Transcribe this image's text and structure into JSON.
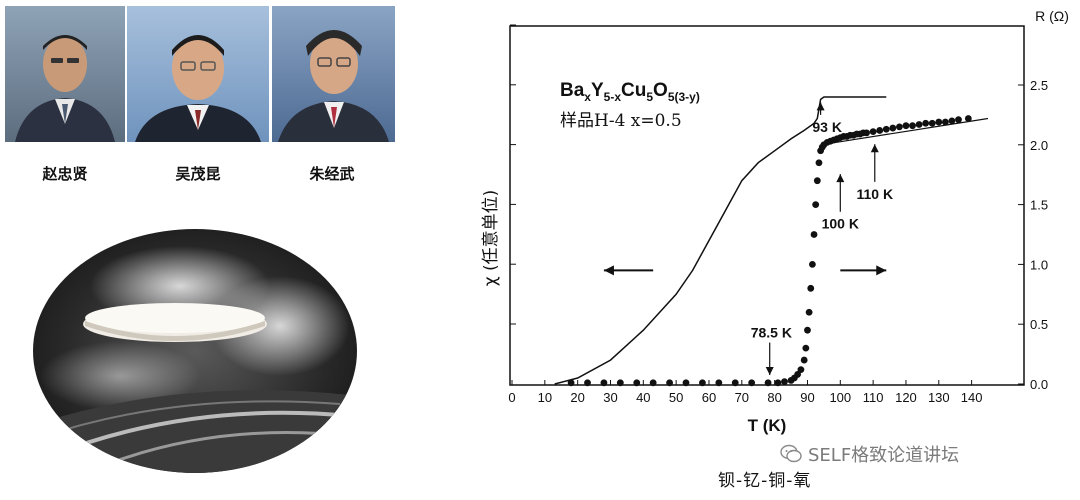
{
  "people": [
    {
      "name": "赵忠贤"
    },
    {
      "name": "吴茂昆"
    },
    {
      "name": "朱经武"
    }
  ],
  "watermark": {
    "text": "SELF格致论道讲坛",
    "icon": "wechat-icon"
  },
  "bottom_caption": "钡-钇-铜-氧",
  "chart_data": {
    "type": "scatter",
    "title_parts": {
      "base": "Ba",
      "s1": "x",
      "m1": "Y",
      "s2": "5-x",
      "m2": "Cu",
      "s3": "5",
      "m3": "O",
      "s4": "5(3-y)"
    },
    "subtitle": "样品H-4  x=0.5",
    "xlabel": "T (K)",
    "ylabel_left": "χ (任意单位)",
    "ylabel_right": "R (Ω)",
    "xlim": [
      0,
      150
    ],
    "ylim_right": [
      0,
      2.5
    ],
    "x_ticks": [
      0,
      10,
      20,
      30,
      40,
      50,
      60,
      70,
      80,
      90,
      100,
      110,
      120,
      130,
      140
    ],
    "y_ticks_right": [
      "0.0",
      "0.5",
      "1.0",
      "1.5",
      "2.0",
      "2.5"
    ],
    "series": [
      {
        "axis": "right",
        "style": "points",
        "x": [
          18,
          23,
          28,
          33,
          38,
          43,
          48,
          53,
          58,
          63,
          68,
          73,
          78,
          81,
          83,
          85,
          86,
          87,
          88,
          89,
          89.5,
          90,
          90.5,
          91,
          91.5,
          92,
          92.5,
          93,
          93.5,
          94,
          94.5,
          95,
          96,
          97,
          98,
          99,
          100,
          101,
          102,
          103,
          104,
          105,
          106,
          107,
          108,
          110,
          112,
          114,
          116,
          118,
          120,
          122,
          124,
          126,
          128,
          130,
          132,
          134,
          136,
          139
        ],
        "values": [
          0.01,
          0.01,
          0.01,
          0.01,
          0.01,
          0.01,
          0.01,
          0.01,
          0.01,
          0.01,
          0.01,
          0.01,
          0.01,
          0.01,
          0.02,
          0.03,
          0.05,
          0.08,
          0.12,
          0.2,
          0.3,
          0.45,
          0.6,
          0.8,
          1.0,
          1.25,
          1.5,
          1.7,
          1.85,
          1.95,
          1.98,
          2.0,
          2.02,
          2.03,
          2.04,
          2.05,
          2.06,
          2.07,
          2.07,
          2.08,
          2.08,
          2.09,
          2.09,
          2.1,
          2.1,
          2.11,
          2.12,
          2.13,
          2.14,
          2.15,
          2.16,
          2.16,
          2.17,
          2.18,
          2.18,
          2.19,
          2.19,
          2.2,
          2.21,
          2.22
        ]
      },
      {
        "axis": "right",
        "style": "line",
        "x": [
          13,
          20,
          30,
          40,
          50,
          55,
          60,
          65,
          70,
          75,
          80,
          85,
          89,
          92,
          93,
          94,
          95,
          100,
          105,
          114
        ],
        "values": [
          0.0,
          0.05,
          0.2,
          0.45,
          0.75,
          0.95,
          1.2,
          1.45,
          1.7,
          1.85,
          1.95,
          2.05,
          2.12,
          2.18,
          2.22,
          2.38,
          2.4,
          2.4,
          2.4,
          2.4
        ]
      },
      {
        "axis": "right",
        "style": "fit-line",
        "x": [
          94,
          145
        ],
        "values": [
          2.0,
          2.22
        ]
      }
    ],
    "annotations": [
      {
        "text": "93 K",
        "x": 94,
        "y": 2.38,
        "label_x": 96,
        "label_y": 2.15,
        "label_anchor": "middle"
      },
      {
        "text": "110 K",
        "x": 110.5,
        "y": 2.03,
        "label_x": 110.5,
        "label_y": 1.59,
        "label_anchor": "middle"
      },
      {
        "text": "100 K",
        "x": 100,
        "y": 1.78,
        "label_x": 100,
        "label_y": 1.34,
        "label_anchor": "middle"
      },
      {
        "text": "78.5 K",
        "x": 78.5,
        "y": 0.05,
        "label_x": 79,
        "label_y": 0.43,
        "label_anchor": "middle"
      }
    ],
    "arrows": [
      {
        "direction": "left",
        "x_from": 43,
        "x_to": 28,
        "y": 0.95
      },
      {
        "direction": "right",
        "x_from": 100,
        "x_to": 114,
        "y": 0.95
      }
    ]
  }
}
